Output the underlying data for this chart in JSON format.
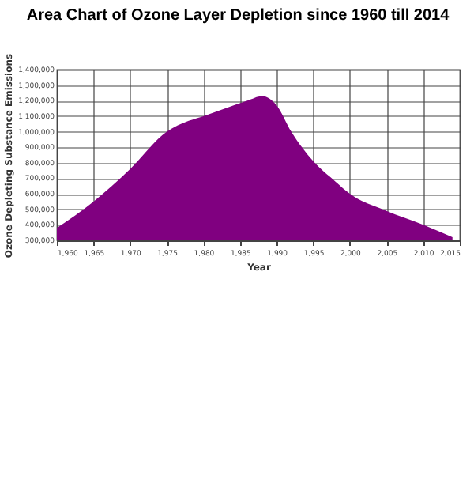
{
  "chart_data": {
    "type": "area",
    "title": "Area Chart of Ozone Layer Depletion since 1960 till 2014",
    "xlabel": "Year",
    "ylabel": "Ozone Depleting Substance Emissions",
    "x": [
      1960,
      1965,
      1970,
      1975,
      1978,
      1980,
      1983,
      1986,
      1988,
      1990,
      1992,
      1995,
      1998,
      2000,
      2005,
      2010,
      2014
    ],
    "series": [
      {
        "color": "#800080",
        "values": [
          380000,
          550000,
          760000,
          1000000,
          1070000,
          1100000,
          1150000,
          1200000,
          1230000,
          1170000,
          1000000,
          810000,
          680000,
          600000,
          490000,
          400000,
          320000
        ]
      }
    ],
    "xlim": [
      1960,
      2015
    ],
    "xticks": [
      {
        "value": 1960,
        "label": "1,960"
      },
      {
        "value": 1965,
        "label": "1,965"
      },
      {
        "value": 1970,
        "label": "1,970"
      },
      {
        "value": 1975,
        "label": "1,975"
      },
      {
        "value": 1980,
        "label": "1,980"
      },
      {
        "value": 1985,
        "label": "1,985"
      },
      {
        "value": 1990,
        "label": "1,990"
      },
      {
        "value": 1995,
        "label": "1,995"
      },
      {
        "value": 2000,
        "label": "2,000"
      },
      {
        "value": 2005,
        "label": "2,005"
      },
      {
        "value": 2010,
        "label": "2,010"
      },
      {
        "value": 2015,
        "label": "2,015"
      }
    ],
    "ylim": [
      300000,
      1400000
    ],
    "yticks": [
      {
        "value": 300000,
        "label": "300,000"
      },
      {
        "value": 400000,
        "label": "400,000"
      },
      {
        "value": 500000,
        "label": "500,000"
      },
      {
        "value": 600000,
        "label": "600,000"
      },
      {
        "value": 700000,
        "label": "700,000"
      },
      {
        "value": 800000,
        "label": "800,000"
      },
      {
        "value": 900000,
        "label": "900,000"
      },
      {
        "value": 1000000,
        "label": "1,000,000"
      },
      {
        "value": 1100000,
        "label": "1,100,000"
      },
      {
        "value": 1200000,
        "label": "1,200,000"
      },
      {
        "value": 1300000,
        "label": "1,300,000"
      },
      {
        "value": 1400000,
        "label": "1,400,000"
      }
    ],
    "grid": true
  }
}
